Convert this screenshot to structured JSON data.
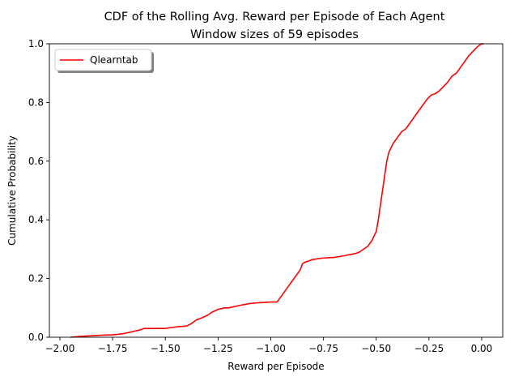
{
  "chart_data": {
    "type": "line",
    "title": "CDF of the Rolling Avg. Reward per Episode of Each Agent",
    "subtitle": "Window sizes of 59 episodes",
    "xlabel": "Reward per Episode",
    "ylabel": "Cumulative Probability",
    "xlim": [
      -2.05,
      0.1
    ],
    "ylim": [
      0.0,
      1.0
    ],
    "xticks": [
      -2.0,
      -1.75,
      -1.5,
      -1.25,
      -1.0,
      -0.75,
      -0.5,
      -0.25,
      0.0
    ],
    "xtick_labels": [
      "−2.00",
      "−1.75",
      "−1.50",
      "−1.25",
      "−1.00",
      "−0.75",
      "−0.50",
      "−0.25",
      "0.00"
    ],
    "yticks": [
      0.0,
      0.2,
      0.4,
      0.6,
      0.8,
      1.0
    ],
    "ytick_labels": [
      "0.0",
      "0.2",
      "0.4",
      "0.6",
      "0.8",
      "1.0"
    ],
    "grid": false,
    "legend_position": "top-left",
    "series": [
      {
        "name": "Qlearntab",
        "color": "#ff0000",
        "x": [
          -1.95,
          -1.9,
          -1.85,
          -1.8,
          -1.75,
          -1.7,
          -1.65,
          -1.62,
          -1.6,
          -1.55,
          -1.5,
          -1.45,
          -1.4,
          -1.38,
          -1.35,
          -1.33,
          -1.3,
          -1.28,
          -1.25,
          -1.22,
          -1.2,
          -1.15,
          -1.12,
          -1.1,
          -1.05,
          -1.0,
          -0.97,
          -0.95,
          -0.92,
          -0.9,
          -0.88,
          -0.86,
          -0.85,
          -0.84,
          -0.82,
          -0.8,
          -0.75,
          -0.7,
          -0.65,
          -0.6,
          -0.58,
          -0.56,
          -0.54,
          -0.52,
          -0.5,
          -0.49,
          -0.48,
          -0.47,
          -0.46,
          -0.45,
          -0.44,
          -0.43,
          -0.42,
          -0.41,
          -0.4,
          -0.38,
          -0.36,
          -0.34,
          -0.32,
          -0.3,
          -0.28,
          -0.26,
          -0.24,
          -0.22,
          -0.2,
          -0.18,
          -0.16,
          -0.14,
          -0.12,
          -0.1,
          -0.08,
          -0.06,
          -0.04,
          -0.02,
          0.0,
          0.01
        ],
        "y": [
          0.0,
          0.003,
          0.005,
          0.007,
          0.008,
          0.012,
          0.02,
          0.025,
          0.03,
          0.03,
          0.03,
          0.035,
          0.038,
          0.045,
          0.06,
          0.065,
          0.075,
          0.085,
          0.095,
          0.1,
          0.1,
          0.108,
          0.112,
          0.115,
          0.118,
          0.12,
          0.12,
          0.14,
          0.17,
          0.19,
          0.21,
          0.23,
          0.25,
          0.255,
          0.26,
          0.265,
          0.27,
          0.272,
          0.278,
          0.285,
          0.29,
          0.3,
          0.31,
          0.33,
          0.36,
          0.4,
          0.45,
          0.5,
          0.55,
          0.6,
          0.63,
          0.645,
          0.66,
          0.67,
          0.68,
          0.7,
          0.71,
          0.73,
          0.75,
          0.77,
          0.79,
          0.81,
          0.825,
          0.83,
          0.84,
          0.855,
          0.87,
          0.89,
          0.9,
          0.92,
          0.94,
          0.96,
          0.975,
          0.99,
          1.0,
          1.0
        ]
      }
    ]
  }
}
